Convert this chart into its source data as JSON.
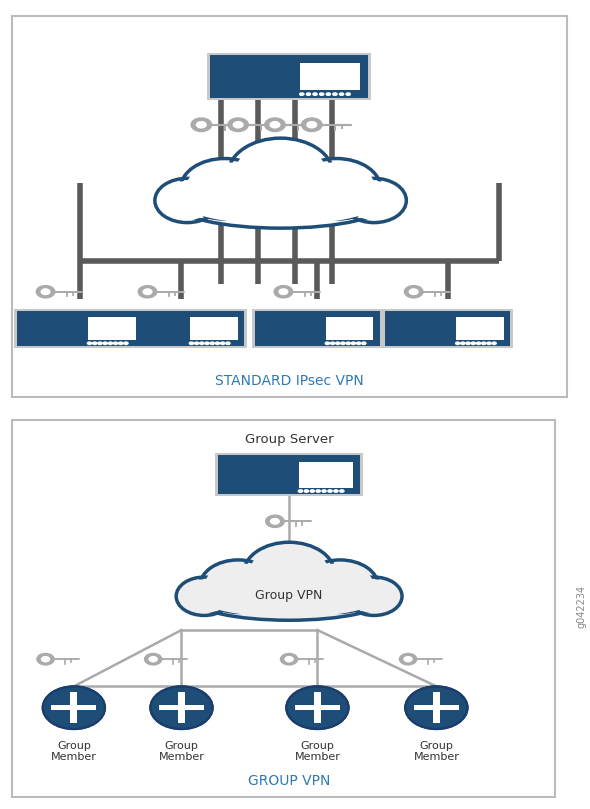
{
  "bg_color": "#ffffff",
  "border_color": "#cccccc",
  "dark_blue": "#1e4d78",
  "medium_blue": "#2e6da4",
  "light_gray": "#aaaaaa",
  "dark_gray": "#5a5a5a",
  "cloud_outline": "#1e4d78",
  "label_blue": "#2e7ab5",
  "title1": "STANDARD IPsec VPN",
  "title2": "GROUP VPN",
  "group_server_label": "Group Server",
  "group_vpn_label": "Group VPN",
  "group_member_label": "Group\nMember",
  "watermark": "g042234",
  "fig_width": 5.9,
  "fig_height": 8.09,
  "dpi": 100
}
